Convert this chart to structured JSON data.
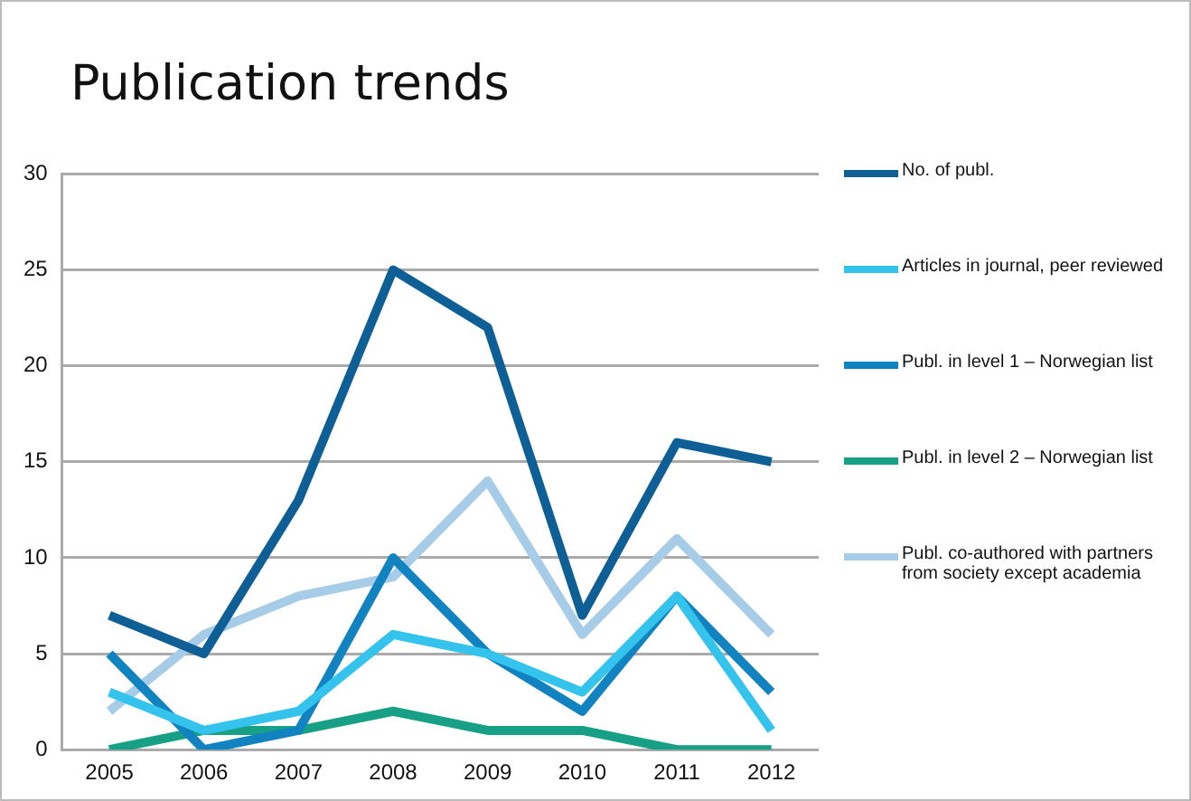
{
  "chart_data": {
    "type": "line",
    "title": "Publication trends",
    "categories": [
      "2005",
      "2006",
      "2007",
      "2008",
      "2009",
      "2010",
      "2011",
      "2012"
    ],
    "series": [
      {
        "name": "No. of publ.",
        "color": "#0f5f97",
        "values": [
          7,
          5,
          13,
          25,
          22,
          7,
          16,
          15
        ]
      },
      {
        "name": "Articles in journal, peer reviewed",
        "color": "#33c3ec",
        "values": [
          3,
          1,
          2,
          6,
          5,
          3,
          8,
          1
        ]
      },
      {
        "name": "Publ. in level 1 – Norwegian list",
        "color": "#1283c1",
        "values": [
          5,
          0,
          1,
          10,
          5,
          2,
          8,
          3
        ]
      },
      {
        "name": "Publ. in level 2 – Norwegian list",
        "color": "#17a085",
        "values": [
          0,
          1,
          1,
          2,
          1,
          1,
          0,
          0
        ]
      },
      {
        "name": "Publ. co-authored with partners from society except academia",
        "color": "#a6cce8",
        "values": [
          2,
          6,
          8,
          9,
          14,
          6,
          11,
          6
        ]
      }
    ],
    "ylim": [
      0,
      30
    ],
    "yticks": [
      0,
      5,
      10,
      15,
      20,
      25,
      30
    ],
    "grid": "y",
    "legend": "right",
    "marker": "none",
    "line_style": "solid"
  }
}
